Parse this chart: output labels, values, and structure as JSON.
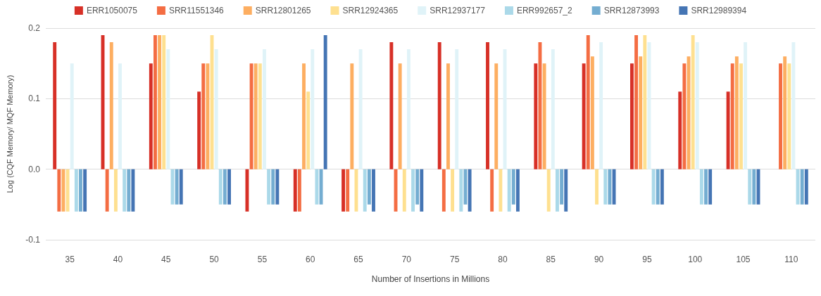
{
  "chart_data": {
    "type": "bar",
    "xlabel": "Number of Insertions in Millions",
    "ylabel": "Log (CQF Memory/ MQF Memory)",
    "categories": [
      "35",
      "40",
      "45",
      "50",
      "55",
      "60",
      "65",
      "70",
      "75",
      "80",
      "85",
      "90",
      "95",
      "100",
      "105",
      "110"
    ],
    "ylim": [
      -0.1,
      0.2
    ],
    "yticks": [
      {
        "value": -0.1,
        "label": "-0.1"
      },
      {
        "value": 0,
        "label": "0.0"
      },
      {
        "value": 0.1,
        "label": "0.1"
      },
      {
        "value": 0.2,
        "label": "0.2"
      }
    ],
    "grid": "y",
    "legend": "top",
    "series": [
      {
        "name": "ERR1050075",
        "color": "#d73027",
        "values": [
          0.18,
          0.19,
          0.15,
          0.11,
          -0.06,
          -0.06,
          -0.06,
          0.18,
          0.18,
          0.18,
          0.15,
          0.15,
          0.15,
          0.11,
          0.11,
          null
        ]
      },
      {
        "name": "SRR11551346",
        "color": "#f46d43",
        "values": [
          -0.06,
          -0.06,
          0.19,
          0.15,
          0.15,
          -0.06,
          -0.06,
          -0.06,
          -0.06,
          -0.06,
          0.18,
          0.19,
          0.19,
          0.15,
          0.15,
          0.15
        ]
      },
      {
        "name": "SRR12801265",
        "color": "#fdae61",
        "values": [
          -0.06,
          0.18,
          0.19,
          0.15,
          0.15,
          0.15,
          0.15,
          0.15,
          0.15,
          0.15,
          0.15,
          0.16,
          0.16,
          0.16,
          0.16,
          0.16
        ]
      },
      {
        "name": "SRR12924365",
        "color": "#fee090",
        "values": [
          -0.06,
          -0.06,
          0.19,
          0.19,
          0.15,
          0.11,
          -0.06,
          -0.06,
          -0.06,
          -0.06,
          -0.06,
          -0.05,
          0.19,
          0.19,
          0.15,
          0.15
        ]
      },
      {
        "name": "SRR12937177",
        "color": "#e0f3f8",
        "values": [
          0.15,
          0.15,
          0.17,
          0.17,
          0.17,
          0.17,
          0.17,
          0.17,
          0.17,
          0.17,
          0.17,
          0.18,
          0.18,
          0.18,
          0.18,
          0.18
        ]
      },
      {
        "name": "ERR992657_2",
        "color": "#abd9e9",
        "values": [
          -0.06,
          -0.06,
          -0.05,
          -0.05,
          -0.05,
          -0.05,
          -0.06,
          -0.06,
          -0.06,
          -0.06,
          -0.06,
          -0.05,
          -0.05,
          -0.05,
          -0.05,
          -0.05
        ]
      },
      {
        "name": "SRR12873993",
        "color": "#74add1",
        "values": [
          -0.06,
          -0.06,
          -0.05,
          -0.05,
          -0.05,
          -0.05,
          -0.05,
          -0.05,
          -0.05,
          -0.05,
          -0.05,
          -0.05,
          -0.05,
          -0.05,
          -0.05,
          -0.05
        ]
      },
      {
        "name": "SRR12989394",
        "color": "#4575b4",
        "values": [
          -0.06,
          -0.06,
          -0.05,
          -0.05,
          -0.05,
          0.19,
          -0.06,
          -0.06,
          -0.06,
          -0.06,
          -0.06,
          -0.05,
          -0.05,
          -0.05,
          -0.05,
          -0.05
        ]
      }
    ]
  }
}
